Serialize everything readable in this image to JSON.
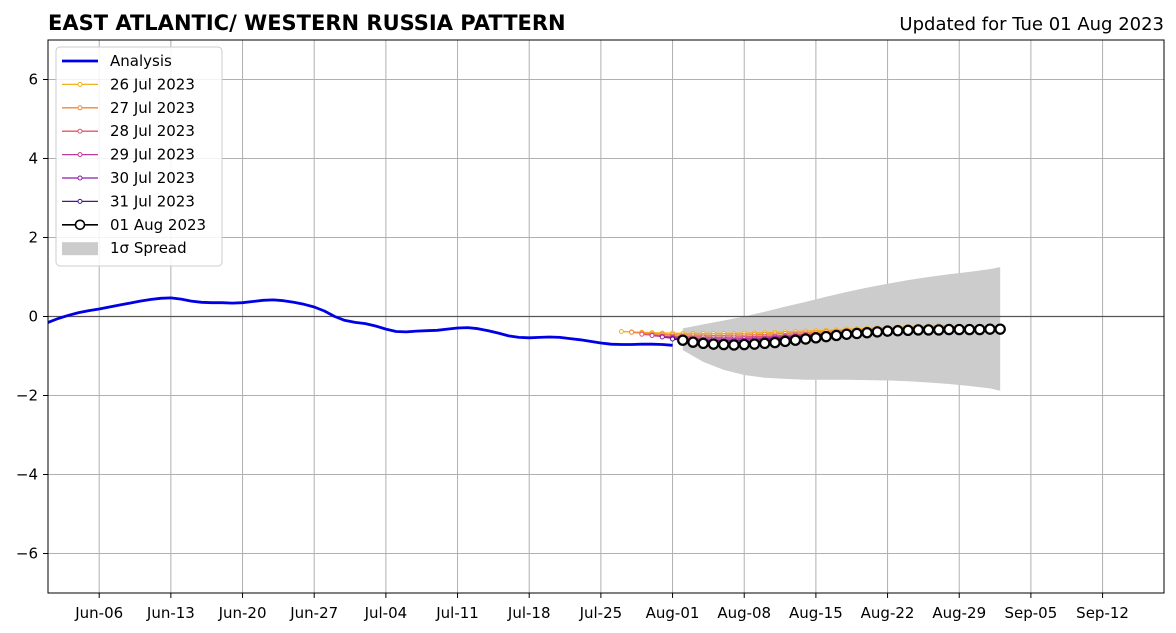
{
  "chart_data": {
    "type": "line",
    "title": "EAST ATLANTIC/ WESTERN RUSSIA PATTERN",
    "subtitle": "Updated for Tue 01 Aug 2023",
    "xlim": [
      "2023-06-01",
      "2023-09-18"
    ],
    "ylim": [
      -7,
      7
    ],
    "x_ticks": [
      {
        "date": "2023-06-06",
        "label": "Jun-06"
      },
      {
        "date": "2023-06-13",
        "label": "Jun-13"
      },
      {
        "date": "2023-06-20",
        "label": "Jun-20"
      },
      {
        "date": "2023-06-27",
        "label": "Jun-27"
      },
      {
        "date": "2023-07-04",
        "label": "Jul-04"
      },
      {
        "date": "2023-07-11",
        "label": "Jul-11"
      },
      {
        "date": "2023-07-18",
        "label": "Jul-18"
      },
      {
        "date": "2023-07-25",
        "label": "Jul-25"
      },
      {
        "date": "2023-08-01",
        "label": "Aug-01"
      },
      {
        "date": "2023-08-08",
        "label": "Aug-08"
      },
      {
        "date": "2023-08-15",
        "label": "Aug-15"
      },
      {
        "date": "2023-08-22",
        "label": "Aug-22"
      },
      {
        "date": "2023-08-29",
        "label": "Aug-29"
      },
      {
        "date": "2023-09-05",
        "label": "Sep-05"
      },
      {
        "date": "2023-09-12",
        "label": "Sep-12"
      }
    ],
    "y_ticks": [
      {
        "value": -6,
        "label": "−6"
      },
      {
        "value": -4,
        "label": "−4"
      },
      {
        "value": -2,
        "label": "−2"
      },
      {
        "value": 0,
        "label": "0"
      },
      {
        "value": 2,
        "label": "2"
      },
      {
        "value": 4,
        "label": "4"
      },
      {
        "value": 6,
        "label": "6"
      }
    ],
    "grid": true,
    "legend_position": "top-left",
    "analysis": {
      "name": "Analysis",
      "color": "#0000e6",
      "x": [
        "2023-06-01",
        "2023-06-02",
        "2023-06-03",
        "2023-06-04",
        "2023-06-05",
        "2023-06-06",
        "2023-06-07",
        "2023-06-08",
        "2023-06-09",
        "2023-06-10",
        "2023-06-11",
        "2023-06-12",
        "2023-06-13",
        "2023-06-14",
        "2023-06-15",
        "2023-06-16",
        "2023-06-17",
        "2023-06-18",
        "2023-06-19",
        "2023-06-20",
        "2023-06-21",
        "2023-06-22",
        "2023-06-23",
        "2023-06-24",
        "2023-06-25",
        "2023-06-26",
        "2023-06-27",
        "2023-06-28",
        "2023-06-29",
        "2023-06-30",
        "2023-07-01",
        "2023-07-02",
        "2023-07-03",
        "2023-07-04",
        "2023-07-05",
        "2023-07-06",
        "2023-07-07",
        "2023-07-08",
        "2023-07-09",
        "2023-07-10",
        "2023-07-11",
        "2023-07-12",
        "2023-07-13",
        "2023-07-14",
        "2023-07-15",
        "2023-07-16",
        "2023-07-17",
        "2023-07-18",
        "2023-07-19",
        "2023-07-20",
        "2023-07-21",
        "2023-07-22",
        "2023-07-23",
        "2023-07-24",
        "2023-07-25",
        "2023-07-26",
        "2023-07-27",
        "2023-07-28",
        "2023-07-29",
        "2023-07-30",
        "2023-07-31",
        "2023-08-01"
      ],
      "y": [
        -0.15,
        -0.05,
        0.03,
        0.1,
        0.15,
        0.19,
        0.24,
        0.29,
        0.34,
        0.39,
        0.43,
        0.46,
        0.47,
        0.44,
        0.39,
        0.36,
        0.35,
        0.35,
        0.34,
        0.35,
        0.38,
        0.41,
        0.42,
        0.4,
        0.36,
        0.31,
        0.24,
        0.14,
        0.0,
        -0.1,
        -0.15,
        -0.18,
        -0.24,
        -0.32,
        -0.38,
        -0.39,
        -0.37,
        -0.36,
        -0.35,
        -0.32,
        -0.29,
        -0.28,
        -0.31,
        -0.36,
        -0.42,
        -0.49,
        -0.53,
        -0.54,
        -0.53,
        -0.52,
        -0.53,
        -0.56,
        -0.59,
        -0.63,
        -0.67,
        -0.7,
        -0.71,
        -0.71,
        -0.7,
        -0.7,
        -0.71,
        -0.73
      ]
    },
    "forecasts": [
      {
        "name": "26 Jul 2023",
        "color": "#f2b21e",
        "x": [
          "2023-07-27",
          "2023-07-28",
          "2023-07-29",
          "2023-07-30",
          "2023-07-31",
          "2023-08-01",
          "2023-08-02",
          "2023-08-03",
          "2023-08-04",
          "2023-08-05",
          "2023-08-06",
          "2023-08-07",
          "2023-08-08",
          "2023-08-09",
          "2023-08-10",
          "2023-08-11",
          "2023-08-12",
          "2023-08-13",
          "2023-08-14",
          "2023-08-15",
          "2023-08-16",
          "2023-08-17",
          "2023-08-18",
          "2023-08-19",
          "2023-08-20",
          "2023-08-21",
          "2023-08-22",
          "2023-08-23",
          "2023-08-24",
          "2023-08-25",
          "2023-08-26",
          "2023-08-27",
          "2023-08-28"
        ],
        "y": [
          -0.38,
          -0.39,
          -0.4,
          -0.41,
          -0.42,
          -0.42,
          -0.43,
          -0.43,
          -0.43,
          -0.43,
          -0.43,
          -0.43,
          -0.42,
          -0.42,
          -0.41,
          -0.4,
          -0.39,
          -0.38,
          -0.37,
          -0.36,
          -0.35,
          -0.34,
          -0.32,
          -0.31,
          -0.3,
          -0.29,
          -0.28,
          -0.27,
          -0.26,
          -0.25,
          -0.24,
          -0.23,
          -0.23
        ]
      },
      {
        "name": "27 Jul 2023",
        "color": "#f08a3a",
        "x": [
          "2023-07-28",
          "2023-07-29",
          "2023-07-30",
          "2023-07-31",
          "2023-08-01",
          "2023-08-02",
          "2023-08-03",
          "2023-08-04",
          "2023-08-05",
          "2023-08-06",
          "2023-08-07",
          "2023-08-08",
          "2023-08-09",
          "2023-08-10",
          "2023-08-11",
          "2023-08-12",
          "2023-08-13",
          "2023-08-14",
          "2023-08-15",
          "2023-08-16",
          "2023-08-17",
          "2023-08-18",
          "2023-08-19",
          "2023-08-20",
          "2023-08-21",
          "2023-08-22",
          "2023-08-23",
          "2023-08-24",
          "2023-08-25",
          "2023-08-26",
          "2023-08-27",
          "2023-08-28",
          "2023-08-29"
        ],
        "y": [
          -0.4,
          -0.42,
          -0.44,
          -0.45,
          -0.46,
          -0.47,
          -0.47,
          -0.48,
          -0.48,
          -0.48,
          -0.47,
          -0.47,
          -0.46,
          -0.45,
          -0.44,
          -0.43,
          -0.42,
          -0.41,
          -0.4,
          -0.38,
          -0.37,
          -0.35,
          -0.34,
          -0.33,
          -0.32,
          -0.31,
          -0.3,
          -0.29,
          -0.28,
          -0.27,
          -0.27,
          -0.26,
          -0.26
        ]
      },
      {
        "name": "28 Jul 2023",
        "color": "#e0586a",
        "x": [
          "2023-07-29",
          "2023-07-30",
          "2023-07-31",
          "2023-08-01",
          "2023-08-02",
          "2023-08-03",
          "2023-08-04",
          "2023-08-05",
          "2023-08-06",
          "2023-08-07",
          "2023-08-08",
          "2023-08-09",
          "2023-08-10",
          "2023-08-11",
          "2023-08-12",
          "2023-08-13",
          "2023-08-14",
          "2023-08-15",
          "2023-08-16",
          "2023-08-17",
          "2023-08-18",
          "2023-08-19",
          "2023-08-20",
          "2023-08-21",
          "2023-08-22",
          "2023-08-23",
          "2023-08-24",
          "2023-08-25",
          "2023-08-26",
          "2023-08-27",
          "2023-08-28",
          "2023-08-29",
          "2023-08-30"
        ],
        "y": [
          -0.45,
          -0.47,
          -0.49,
          -0.5,
          -0.51,
          -0.52,
          -0.52,
          -0.53,
          -0.53,
          -0.52,
          -0.52,
          -0.51,
          -0.5,
          -0.49,
          -0.48,
          -0.46,
          -0.45,
          -0.44,
          -0.42,
          -0.41,
          -0.39,
          -0.38,
          -0.37,
          -0.35,
          -0.34,
          -0.33,
          -0.32,
          -0.32,
          -0.31,
          -0.31,
          -0.3,
          -0.3,
          -0.3
        ]
      },
      {
        "name": "29 Jul 2023",
        "color": "#c03a9a",
        "x": [
          "2023-07-30",
          "2023-07-31",
          "2023-08-01",
          "2023-08-02",
          "2023-08-03",
          "2023-08-04",
          "2023-08-05",
          "2023-08-06",
          "2023-08-07",
          "2023-08-08",
          "2023-08-09",
          "2023-08-10",
          "2023-08-11",
          "2023-08-12",
          "2023-08-13",
          "2023-08-14",
          "2023-08-15",
          "2023-08-16",
          "2023-08-17",
          "2023-08-18",
          "2023-08-19",
          "2023-08-20",
          "2023-08-21",
          "2023-08-22",
          "2023-08-23",
          "2023-08-24",
          "2023-08-25",
          "2023-08-26",
          "2023-08-27",
          "2023-08-28",
          "2023-08-29",
          "2023-08-30",
          "2023-08-31"
        ],
        "y": [
          -0.48,
          -0.51,
          -0.53,
          -0.55,
          -0.56,
          -0.57,
          -0.57,
          -0.57,
          -0.57,
          -0.56,
          -0.55,
          -0.54,
          -0.52,
          -0.51,
          -0.49,
          -0.47,
          -0.46,
          -0.44,
          -0.42,
          -0.41,
          -0.39,
          -0.38,
          -0.37,
          -0.36,
          -0.35,
          -0.34,
          -0.33,
          -0.33,
          -0.32,
          -0.32,
          -0.32,
          -0.32,
          -0.32
        ]
      },
      {
        "name": "30 Jul 2023",
        "color": "#8e1aa8",
        "x": [
          "2023-07-31",
          "2023-08-01",
          "2023-08-02",
          "2023-08-03",
          "2023-08-04",
          "2023-08-05",
          "2023-08-06",
          "2023-08-07",
          "2023-08-08",
          "2023-08-09",
          "2023-08-10",
          "2023-08-11",
          "2023-08-12",
          "2023-08-13",
          "2023-08-14",
          "2023-08-15",
          "2023-08-16",
          "2023-08-17",
          "2023-08-18",
          "2023-08-19",
          "2023-08-20",
          "2023-08-21",
          "2023-08-22",
          "2023-08-23",
          "2023-08-24",
          "2023-08-25",
          "2023-08-26",
          "2023-08-27",
          "2023-08-28",
          "2023-08-29",
          "2023-08-30",
          "2023-08-31",
          "2023-09-01"
        ],
        "y": [
          -0.52,
          -0.55,
          -0.57,
          -0.59,
          -0.6,
          -0.61,
          -0.61,
          -0.61,
          -0.6,
          -0.59,
          -0.57,
          -0.55,
          -0.53,
          -0.51,
          -0.49,
          -0.47,
          -0.45,
          -0.43,
          -0.42,
          -0.4,
          -0.39,
          -0.38,
          -0.37,
          -0.36,
          -0.35,
          -0.34,
          -0.34,
          -0.33,
          -0.33,
          -0.33,
          -0.33,
          -0.33,
          -0.33
        ]
      },
      {
        "name": "31 Jul 2023",
        "color": "#4a148c",
        "x": [
          "2023-08-01",
          "2023-08-02",
          "2023-08-03",
          "2023-08-04",
          "2023-08-05",
          "2023-08-06",
          "2023-08-07",
          "2023-08-08",
          "2023-08-09",
          "2023-08-10",
          "2023-08-11",
          "2023-08-12",
          "2023-08-13",
          "2023-08-14",
          "2023-08-15",
          "2023-08-16",
          "2023-08-17",
          "2023-08-18",
          "2023-08-19",
          "2023-08-20",
          "2023-08-21",
          "2023-08-22",
          "2023-08-23",
          "2023-08-24",
          "2023-08-25",
          "2023-08-26",
          "2023-08-27",
          "2023-08-28",
          "2023-08-29",
          "2023-08-30",
          "2023-08-31",
          "2023-09-01",
          "2023-09-02"
        ],
        "y": [
          -0.57,
          -0.6,
          -0.63,
          -0.65,
          -0.66,
          -0.66,
          -0.66,
          -0.65,
          -0.63,
          -0.61,
          -0.58,
          -0.56,
          -0.53,
          -0.51,
          -0.48,
          -0.46,
          -0.44,
          -0.42,
          -0.41,
          -0.39,
          -0.38,
          -0.37,
          -0.36,
          -0.35,
          -0.35,
          -0.34,
          -0.34,
          -0.33,
          -0.33,
          -0.33,
          -0.33,
          -0.33,
          -0.33
        ]
      }
    ],
    "latest_forecast": {
      "name": "01 Aug 2023",
      "color": "#000000",
      "x": [
        "2023-08-02",
        "2023-08-03",
        "2023-08-04",
        "2023-08-05",
        "2023-08-06",
        "2023-08-07",
        "2023-08-08",
        "2023-08-09",
        "2023-08-10",
        "2023-08-11",
        "2023-08-12",
        "2023-08-13",
        "2023-08-14",
        "2023-08-15",
        "2023-08-16",
        "2023-08-17",
        "2023-08-18",
        "2023-08-19",
        "2023-08-20",
        "2023-08-21",
        "2023-08-22",
        "2023-08-23",
        "2023-08-24",
        "2023-08-25",
        "2023-08-26",
        "2023-08-27",
        "2023-08-28",
        "2023-08-29",
        "2023-08-30",
        "2023-08-31",
        "2023-09-01",
        "2023-09-02"
      ],
      "y": [
        -0.6,
        -0.65,
        -0.68,
        -0.7,
        -0.71,
        -0.72,
        -0.71,
        -0.7,
        -0.68,
        -0.66,
        -0.63,
        -0.6,
        -0.57,
        -0.54,
        -0.51,
        -0.48,
        -0.45,
        -0.43,
        -0.41,
        -0.39,
        -0.37,
        -0.36,
        -0.35,
        -0.34,
        -0.34,
        -0.34,
        -0.33,
        -0.33,
        -0.33,
        -0.33,
        -0.32,
        -0.32
      ]
    },
    "spread": {
      "name": "1σ Spread",
      "color": "#cccccc",
      "x": [
        "2023-08-02",
        "2023-08-04",
        "2023-08-06",
        "2023-08-08",
        "2023-08-10",
        "2023-08-12",
        "2023-08-14",
        "2023-08-16",
        "2023-08-18",
        "2023-08-20",
        "2023-08-22",
        "2023-08-24",
        "2023-08-26",
        "2023-08-28",
        "2023-08-30",
        "2023-09-01",
        "2023-09-02"
      ],
      "upper": [
        -0.3,
        -0.2,
        -0.1,
        0.0,
        0.12,
        0.25,
        0.37,
        0.5,
        0.62,
        0.73,
        0.83,
        0.92,
        1.0,
        1.07,
        1.13,
        1.2,
        1.25
      ],
      "lower": [
        -0.85,
        -1.15,
        -1.35,
        -1.48,
        -1.55,
        -1.58,
        -1.6,
        -1.6,
        -1.6,
        -1.61,
        -1.62,
        -1.64,
        -1.67,
        -1.71,
        -1.76,
        -1.82,
        -1.88
      ]
    }
  }
}
